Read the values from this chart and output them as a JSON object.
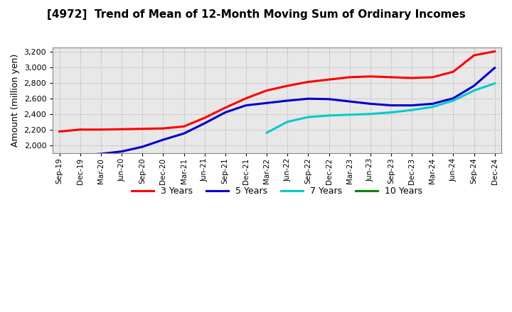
{
  "title": "[4972]  Trend of Mean of 12-Month Moving Sum of Ordinary Incomes",
  "ylabel": "Amount (million yen)",
  "background_color": "#ffffff",
  "grid_color": "#aaaaaa",
  "plot_bg_color": "#e8e8e8",
  "ylim": [
    1900,
    3250
  ],
  "yticks": [
    2000,
    2200,
    2400,
    2600,
    2800,
    3000,
    3200
  ],
  "series": {
    "3years": {
      "color": "#ff0000",
      "label": "3 Years",
      "dates": [
        "Sep-19",
        "Dec-19",
        "Mar-20",
        "Jun-20",
        "Sep-20",
        "Dec-20",
        "Mar-21",
        "Jun-21",
        "Sep-21",
        "Dec-21",
        "Mar-22",
        "Jun-22",
        "Sep-22",
        "Dec-22",
        "Mar-23",
        "Jun-23",
        "Sep-23",
        "Dec-23",
        "Mar-24",
        "Jun-24",
        "Sep-24",
        "Dec-24"
      ],
      "values": [
        2175,
        2200,
        2200,
        2205,
        2210,
        2215,
        2240,
        2350,
        2480,
        2600,
        2700,
        2760,
        2810,
        2840,
        2870,
        2880,
        2870,
        2860,
        2870,
        2940,
        3150,
        3200
      ]
    },
    "5years": {
      "color": "#0000cc",
      "label": "5 Years",
      "dates": [
        "Dec-19",
        "Mar-20",
        "Jun-20",
        "Sep-20",
        "Dec-20",
        "Mar-21",
        "Jun-21",
        "Sep-21",
        "Dec-21",
        "Mar-22",
        "Jun-22",
        "Sep-22",
        "Dec-22",
        "Mar-23",
        "Jun-23",
        "Sep-23",
        "Dec-23",
        "Mar-24",
        "Jun-24",
        "Sep-24",
        "Dec-24"
      ],
      "values": [
        1870,
        1890,
        1920,
        1980,
        2070,
        2150,
        2280,
        2420,
        2510,
        2540,
        2570,
        2595,
        2590,
        2560,
        2530,
        2510,
        2510,
        2530,
        2600,
        2760,
        2990
      ]
    },
    "7years": {
      "color": "#00cccc",
      "label": "7 Years",
      "dates": [
        "Mar-22",
        "Jun-22",
        "Sep-22",
        "Dec-22",
        "Mar-23",
        "Jun-23",
        "Sep-23",
        "Dec-23",
        "Mar-24",
        "Jun-24",
        "Sep-24",
        "Dec-24"
      ],
      "values": [
        2160,
        2300,
        2360,
        2380,
        2390,
        2400,
        2420,
        2450,
        2490,
        2570,
        2700,
        2790
      ]
    },
    "10years": {
      "color": "#008800",
      "label": "10 Years",
      "dates": [],
      "values": []
    }
  },
  "xtick_labels": [
    "Sep-19",
    "Dec-19",
    "Mar-20",
    "Jun-20",
    "Sep-20",
    "Dec-20",
    "Mar-21",
    "Jun-21",
    "Sep-21",
    "Dec-21",
    "Mar-22",
    "Jun-22",
    "Sep-22",
    "Dec-22",
    "Mar-23",
    "Jun-23",
    "Sep-23",
    "Dec-23",
    "Mar-24",
    "Jun-24",
    "Sep-24",
    "Dec-24"
  ],
  "legend_loc": "lower center"
}
